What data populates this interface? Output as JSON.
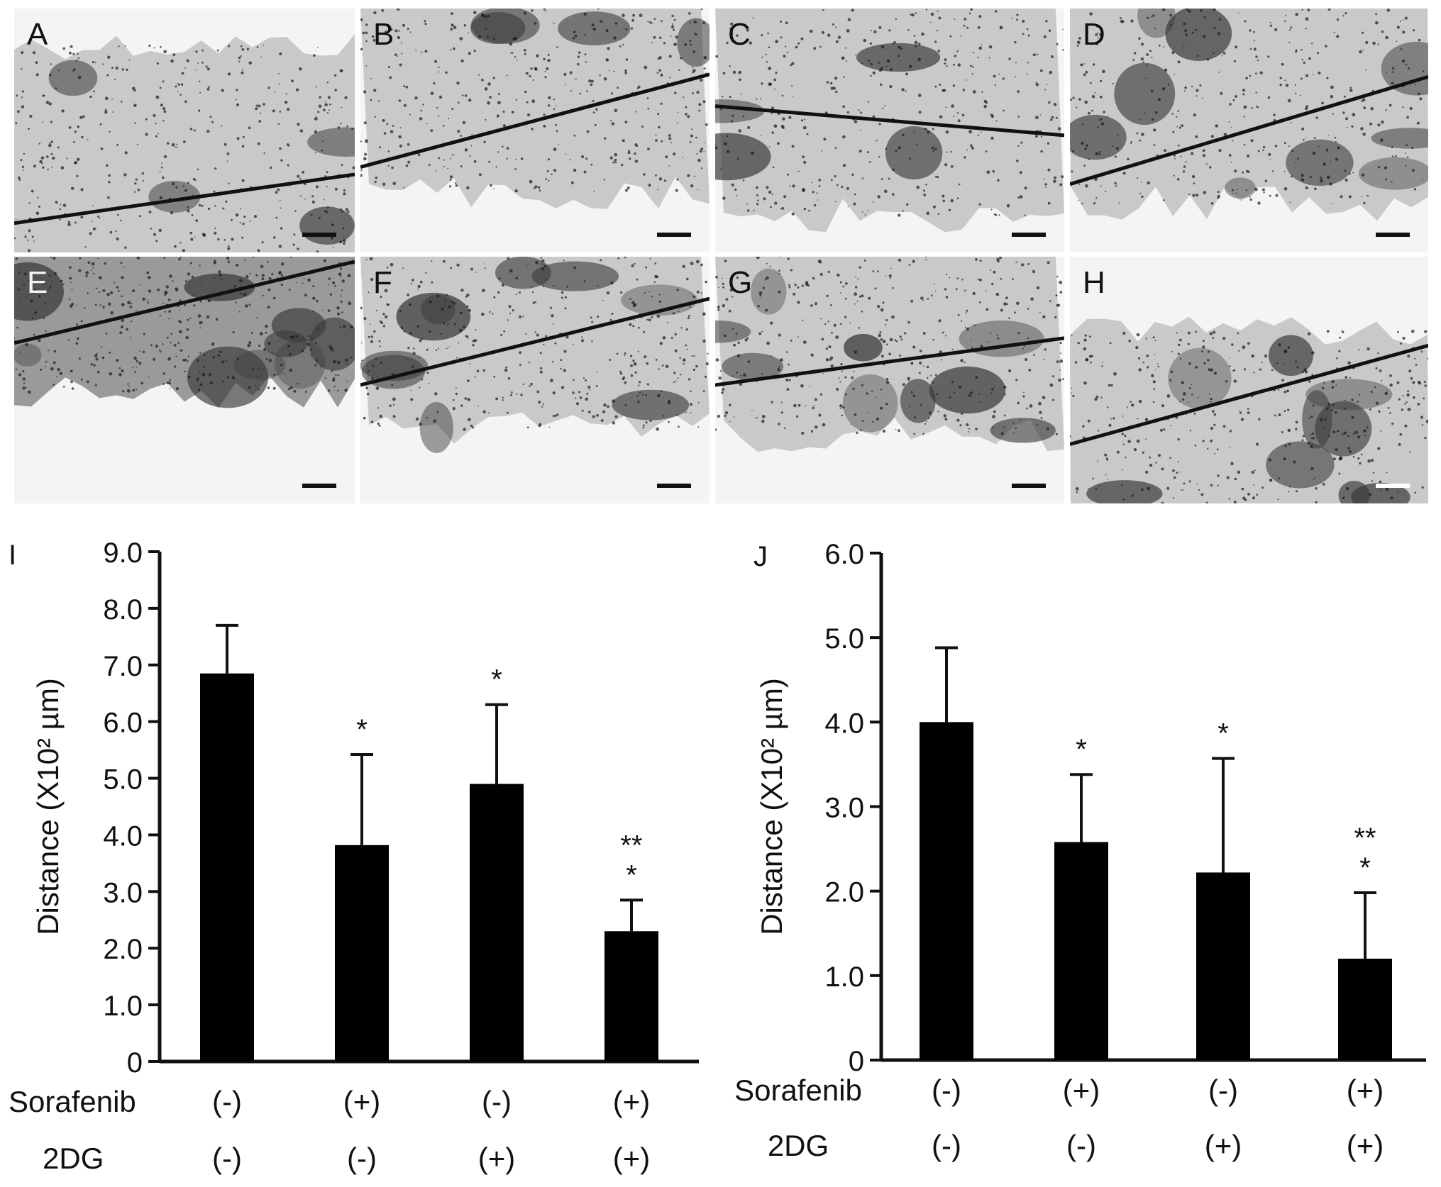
{
  "micrographs": [
    {
      "label": "A",
      "tone": "light"
    },
    {
      "label": "B",
      "tone": "light"
    },
    {
      "label": "C",
      "tone": "light"
    },
    {
      "label": "D",
      "tone": "light"
    },
    {
      "label": "E",
      "tone": "dark"
    },
    {
      "label": "F",
      "tone": "light"
    },
    {
      "label": "G",
      "tone": "light"
    },
    {
      "label": "H",
      "tone": "light"
    }
  ],
  "chart_data": [
    {
      "panel_label": "I",
      "type": "bar",
      "title": "",
      "xlabel": "",
      "ylabel": "Distance (X10² µm)",
      "ylim": [
        0,
        9.0
      ],
      "yticks": [
        0,
        1.0,
        2.0,
        3.0,
        4.0,
        5.0,
        6.0,
        7.0,
        8.0,
        9.0
      ],
      "ytick_labels": [
        "0",
        "1.0",
        "2.0",
        "3.0",
        "4.0",
        "5.0",
        "6.0",
        "7.0",
        "8.0",
        "9.0"
      ],
      "categories": [
        "Sorafenib (-) / 2DG (-)",
        "Sorafenib (+) / 2DG (-)",
        "Sorafenib (-) / 2DG (+)",
        "Sorafenib (+) / 2DG (+)"
      ],
      "values": [
        6.85,
        3.82,
        4.9,
        2.3
      ],
      "error_upper": [
        0.85,
        1.6,
        1.4,
        0.55
      ],
      "significance": [
        "",
        "*",
        "*",
        "**\n*"
      ],
      "factor_rows": [
        {
          "name": "Sorafenib",
          "levels": [
            "(-)",
            "(+)",
            "(-)",
            "(+)"
          ]
        },
        {
          "name": "2DG",
          "levels": [
            "(-)",
            "(-)",
            "(+)",
            "(+)"
          ]
        }
      ],
      "bar_color": "#000000",
      "grid": false
    },
    {
      "panel_label": "J",
      "type": "bar",
      "title": "",
      "xlabel": "",
      "ylabel": "Distance (X10² µm)",
      "ylim": [
        0,
        6.0
      ],
      "yticks": [
        0,
        1.0,
        2.0,
        3.0,
        4.0,
        5.0,
        6.0
      ],
      "ytick_labels": [
        "0",
        "1.0",
        "2.0",
        "3.0",
        "4.0",
        "5.0",
        "6.0"
      ],
      "categories": [
        "Sorafenib (-) / 2DG (-)",
        "Sorafenib (+) / 2DG (-)",
        "Sorafenib (-) / 2DG (+)",
        "Sorafenib (+) / 2DG (+)"
      ],
      "values": [
        4.0,
        2.58,
        2.22,
        1.2
      ],
      "error_upper": [
        0.88,
        0.8,
        1.35,
        0.78
      ],
      "significance": [
        "",
        "*",
        "*",
        "**\n*"
      ],
      "factor_rows": [
        {
          "name": "Sorafenib",
          "levels": [
            "(-)",
            "(+)",
            "(-)",
            "(+)"
          ]
        },
        {
          "name": "2DG",
          "levels": [
            "(-)",
            "(-)",
            "(+)",
            "(+)"
          ]
        }
      ],
      "bar_color": "#000000",
      "grid": false
    }
  ]
}
